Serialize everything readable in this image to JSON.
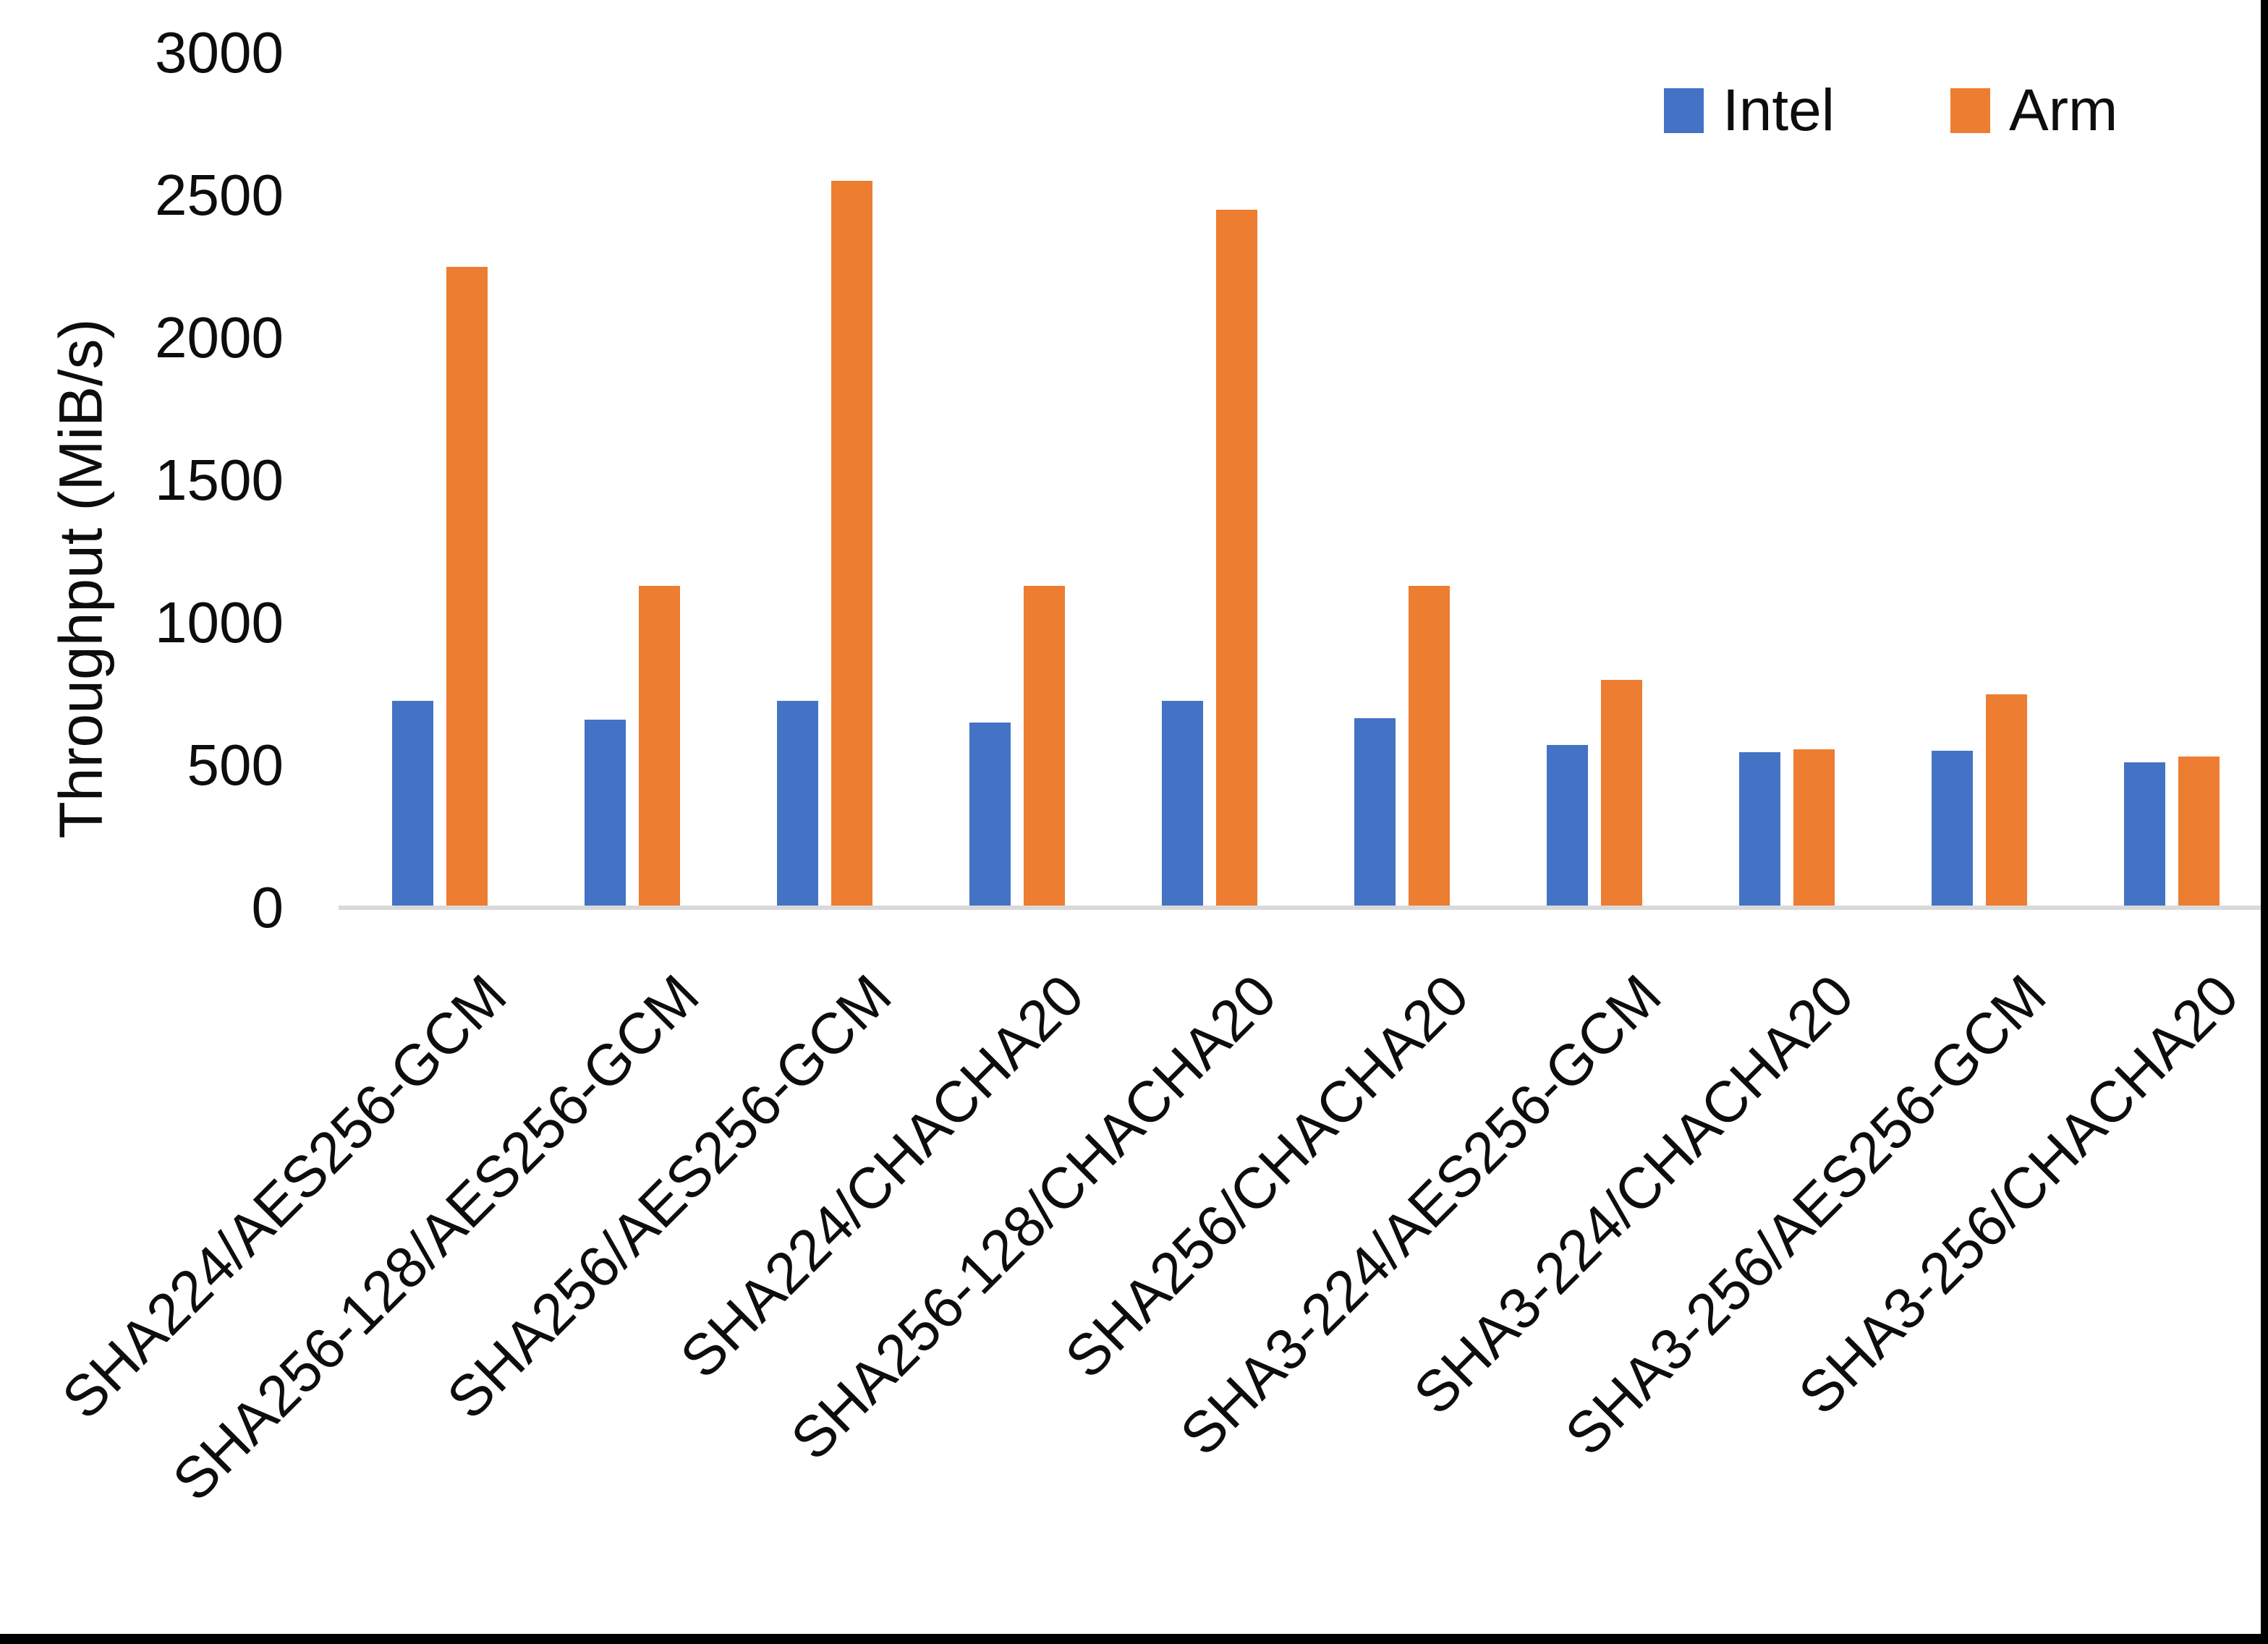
{
  "chart_data": {
    "type": "bar",
    "title": "",
    "xlabel": "",
    "ylabel": "Throughput (MiB/s)",
    "ylim": [
      0,
      3000
    ],
    "yticks": [
      0,
      500,
      1000,
      1500,
      2000,
      2500,
      3000
    ],
    "grid": false,
    "legend_position": "top-right",
    "categories": [
      "SHA224/AES256-GCM",
      "SHA256-128/AES256-GCM",
      "SHA256/AES256-GCM",
      "SHA224/CHACHA20",
      "SHA256-128/CHACHA20",
      "SHA256/CHACHA20",
      "SHA3-224/AES256-GCM",
      "SHA3-224/CHACHA20",
      "SHA3-256/AES256-GCM",
      "SHA3-256/CHACHA20"
    ],
    "series": [
      {
        "name": "Intel",
        "color": "#4472C4",
        "values": [
          725,
          660,
          725,
          650,
          725,
          665,
          570,
          545,
          550,
          510
        ]
      },
      {
        "name": "Arm",
        "color": "#ED7D31",
        "values": [
          2250,
          1130,
          2550,
          1130,
          2450,
          1130,
          800,
          555,
          750,
          530
        ]
      }
    ]
  },
  "colors": {
    "axis_line": "#d9d9d9",
    "text": "#0d0d0d",
    "frame": "#000000",
    "background": "#ffffff"
  }
}
